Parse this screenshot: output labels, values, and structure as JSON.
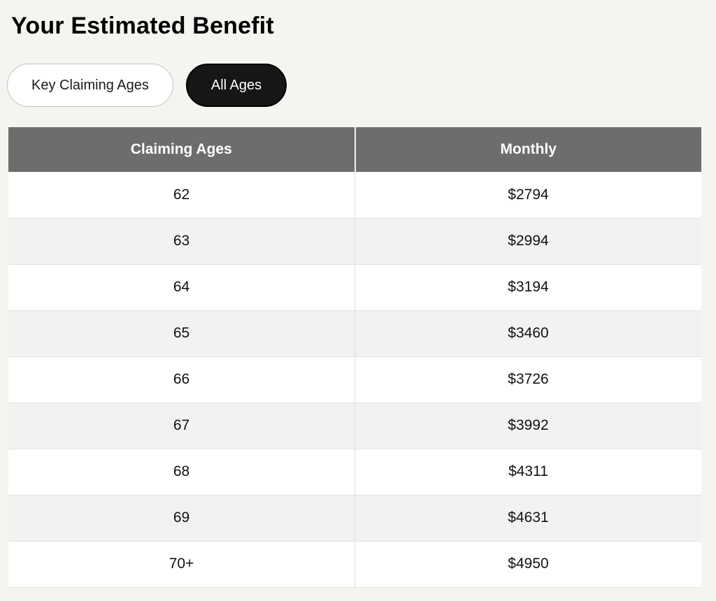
{
  "page": {
    "title": "Your Estimated Benefit",
    "background_color": "#f5f4f0"
  },
  "toggles": {
    "key_claiming_ages_label": "Key Claiming Ages",
    "all_ages_label": "All Ages",
    "active": "All Ages",
    "active_bg_color": "#161616",
    "inactive_bg_color": "#ffffff"
  },
  "table": {
    "headers": {
      "claiming_ages": "Claiming Ages",
      "monthly": "Monthly"
    },
    "header_bg_color": "#6d6d6d",
    "header_text_color": "#ffffff",
    "alt_row_bg_color": "#f2f2f2",
    "rows": [
      {
        "age": "62",
        "monthly": "$2794"
      },
      {
        "age": "63",
        "monthly": "$2994"
      },
      {
        "age": "64",
        "monthly": "$3194"
      },
      {
        "age": "65",
        "monthly": "$3460"
      },
      {
        "age": "66",
        "monthly": "$3726"
      },
      {
        "age": "67",
        "monthly": "$3992"
      },
      {
        "age": "68",
        "monthly": "$4311"
      },
      {
        "age": "69",
        "monthly": "$4631"
      },
      {
        "age": "70+",
        "monthly": "$4950"
      }
    ]
  }
}
